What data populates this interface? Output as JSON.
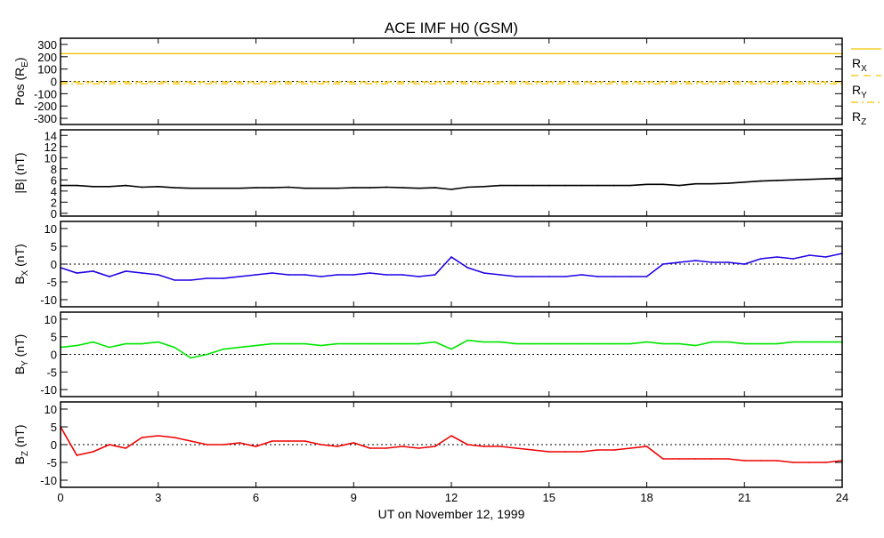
{
  "chart_data": {
    "type": "line",
    "title": "ACE IMF H0 (GSM)",
    "xlabel": "UT on November 12, 1999",
    "xlim": [
      0,
      24
    ],
    "xticks": [
      "0",
      "3",
      "6",
      "9",
      "12",
      "15",
      "18",
      "21",
      "24"
    ],
    "x": [
      0,
      0.5,
      1,
      1.5,
      2,
      2.5,
      3,
      3.5,
      4,
      4.5,
      5,
      5.5,
      6,
      6.5,
      7,
      7.5,
      8,
      8.5,
      9,
      9.5,
      10,
      10.5,
      11,
      11.5,
      12,
      12.5,
      13,
      13.5,
      14,
      14.5,
      15,
      15.5,
      16,
      16.5,
      17,
      17.5,
      18,
      18.5,
      19,
      19.5,
      20,
      20.5,
      21,
      21.5,
      22,
      22.5,
      23,
      23.5,
      24
    ],
    "panels": [
      {
        "id": "pos",
        "ylabel": {
          "main": "Pos (R",
          "sub": "E",
          "suffix": ")"
        },
        "ylim": [
          -350,
          350
        ],
        "yticks": [
          "300",
          "200",
          "100",
          "0",
          "-100",
          "-200",
          "-300"
        ],
        "zero_line": true,
        "series": [
          {
            "name": "R",
            "sub": "X",
            "style": "solid",
            "color": "#f5c400",
            "constant": 225
          },
          {
            "name": "R",
            "sub": "Y",
            "style": "dashed",
            "color": "#f5c400",
            "constant": -5
          },
          {
            "name": "R",
            "sub": "Z",
            "style": "dashdot",
            "color": "#f5c400",
            "constant": -20
          }
        ]
      },
      {
        "id": "bmag",
        "ylabel": {
          "main": "|B| (nT)",
          "sub": "",
          "suffix": ""
        },
        "ylim": [
          -0.5,
          15
        ],
        "yticks": [
          "14",
          "12",
          "10",
          "8",
          "6",
          "4",
          "2",
          "0"
        ],
        "zero_line": false,
        "series": [
          {
            "name": "|B|",
            "color": "#000000",
            "values": [
              5,
              5,
              4.8,
              4.8,
              5,
              4.7,
              4.8,
              4.6,
              4.5,
              4.5,
              4.5,
              4.5,
              4.6,
              4.6,
              4.7,
              4.5,
              4.5,
              4.5,
              4.6,
              4.6,
              4.7,
              4.6,
              4.5,
              4.6,
              4.3,
              4.7,
              4.8,
              5,
              5,
              5,
              5,
              5,
              5,
              5,
              5,
              5,
              5.2,
              5.2,
              5,
              5.3,
              5.3,
              5.4,
              5.6,
              5.8,
              5.9,
              6,
              6.1,
              6.2,
              6.3
            ]
          }
        ]
      },
      {
        "id": "bx",
        "ylabel": {
          "main": "B",
          "sub": "X",
          "suffix": " (nT)"
        },
        "ylim": [
          -12,
          12
        ],
        "yticks": [
          "10",
          "5",
          "0",
          "-5",
          "-10"
        ],
        "zero_line": true,
        "series": [
          {
            "name": "Bx",
            "color": "#1e00e6",
            "values": [
              -1,
              -2.5,
              -2,
              -3.5,
              -2,
              -2.5,
              -3,
              -4.5,
              -4.5,
              -4,
              -4,
              -3.5,
              -3,
              -2.5,
              -3,
              -3,
              -3.5,
              -3,
              -3,
              -2.5,
              -3,
              -3,
              -3.5,
              -3,
              2,
              -1,
              -2.5,
              -3,
              -3.5,
              -3.5,
              -3.5,
              -3.5,
              -3,
              -3.5,
              -3.5,
              -3.5,
              -3.5,
              0,
              0.5,
              1,
              0.5,
              0.5,
              0,
              1.5,
              2,
              1.5,
              2.5,
              2,
              3
            ]
          }
        ]
      },
      {
        "id": "by",
        "ylabel": {
          "main": "B",
          "sub": "Y",
          "suffix": " (nT)"
        },
        "ylim": [
          -12,
          12
        ],
        "yticks": [
          "10",
          "5",
          "0",
          "-5",
          "-10"
        ],
        "zero_line": true,
        "series": [
          {
            "name": "By",
            "color": "#00e600",
            "values": [
              2,
              2.5,
              3.5,
              2,
              3,
              3,
              3.5,
              2,
              -1,
              0,
              1.5,
              2,
              2.5,
              3,
              3,
              3,
              2.5,
              3,
              3,
              3,
              3,
              3,
              3,
              3.5,
              1.5,
              4,
              3.5,
              3.5,
              3,
              3,
              3,
              3,
              3,
              3,
              3,
              3,
              3.5,
              3,
              3,
              2.5,
              3.5,
              3.5,
              3,
              3,
              3,
              3.5,
              3.5,
              3.5,
              3.5
            ]
          }
        ]
      },
      {
        "id": "bz",
        "ylabel": {
          "main": "B",
          "sub": "Z",
          "suffix": " (nT)"
        },
        "ylim": [
          -12,
          12
        ],
        "yticks": [
          "10",
          "5",
          "0",
          "-5",
          "-10"
        ],
        "zero_line": true,
        "series": [
          {
            "name": "Bz",
            "color": "#f00000",
            "values": [
              5,
              -3,
              -2,
              0,
              -1,
              2,
              2.5,
              2,
              1,
              0,
              0,
              0.5,
              -0.5,
              1,
              1,
              1,
              0,
              -0.5,
              0.5,
              -1,
              -1,
              -0.5,
              -1,
              -0.5,
              2.5,
              0,
              -0.5,
              -0.5,
              -1,
              -1.5,
              -2,
              -2,
              -2,
              -1.5,
              -1.5,
              -1,
              -0.5,
              -4,
              -4,
              -4,
              -4,
              -4,
              -4.5,
              -4.5,
              -4.5,
              -5,
              -5,
              -5,
              -4.5
            ]
          }
        ]
      }
    ]
  }
}
